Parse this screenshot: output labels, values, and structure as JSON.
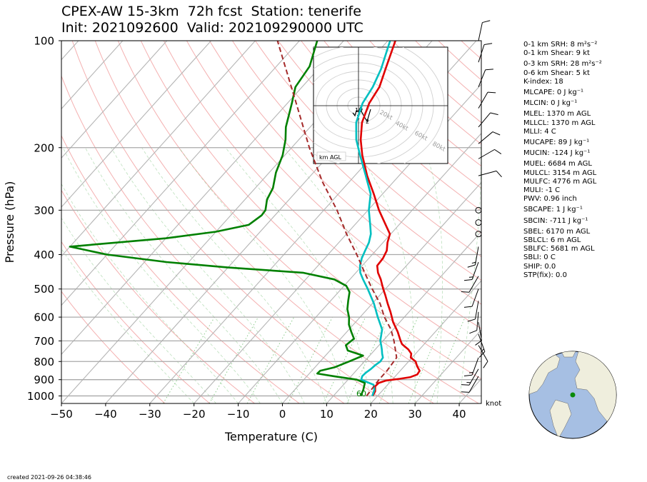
{
  "title_line1": "CPEX-AW 15-3km  72h fcst  Station: tenerife",
  "title_line2": "Init: 2021092600  Valid: 202109290000 UTC",
  "chart_data": {
    "type": "skew-t",
    "xlabel": "Temperature (C)",
    "ylabel": "Pressure (hPa)",
    "xlim": [
      -50,
      45
    ],
    "ylim_hpa": [
      1050,
      100
    ],
    "x_ticks": [
      -50,
      -40,
      -30,
      -20,
      -10,
      0,
      10,
      20,
      30,
      40
    ],
    "y_ticks": [
      1000,
      900,
      800,
      700,
      600,
      500,
      400,
      300,
      200,
      100
    ],
    "skew": "isotherms slanted to the right with height",
    "grid": true,
    "series": [
      {
        "name": "",
        "color": "#e00000",
        "points": [
          [
            1000,
            18.9
          ],
          [
            970,
            18.5
          ],
          [
            940,
            17.5
          ],
          [
            920,
            17.6
          ],
          [
            905,
            18.8
          ],
          [
            895,
            21.5
          ],
          [
            885,
            23.6
          ],
          [
            870,
            24.6
          ],
          [
            850,
            24.4
          ],
          [
            825,
            22.9
          ],
          [
            800,
            21.6
          ],
          [
            780,
            19.7
          ],
          [
            760,
            19.0
          ],
          [
            740,
            17.5
          ],
          [
            715,
            15.0
          ],
          [
            700,
            14.0
          ],
          [
            660,
            11.5
          ],
          [
            620,
            8.5
          ],
          [
            580,
            5.8
          ],
          [
            550,
            3.5
          ],
          [
            520,
            1.2
          ],
          [
            500,
            -0.5
          ],
          [
            470,
            -3.0
          ],
          [
            450,
            -5.0
          ],
          [
            430,
            -6.6
          ],
          [
            410,
            -6.8
          ],
          [
            390,
            -7.5
          ],
          [
            370,
            -9.0
          ],
          [
            350,
            -10.2
          ],
          [
            330,
            -13.0
          ],
          [
            300,
            -17.5
          ],
          [
            270,
            -22.0
          ],
          [
            240,
            -27.2
          ],
          [
            210,
            -32.5
          ],
          [
            190,
            -36.0
          ],
          [
            170,
            -39.2
          ],
          [
            150,
            -41.5
          ],
          [
            135,
            -42.5
          ],
          [
            120,
            -44.8
          ],
          [
            100,
            -48.3
          ]
        ]
      },
      {
        "name": "",
        "color": "#00bfc0",
        "points": [
          [
            1000,
            18.8
          ],
          [
            960,
            18.0
          ],
          [
            930,
            16.8
          ],
          [
            900,
            13.0
          ],
          [
            880,
            12.5
          ],
          [
            860,
            12.6
          ],
          [
            840,
            13.0
          ],
          [
            820,
            13.2
          ],
          [
            800,
            13.6
          ],
          [
            780,
            13.4
          ],
          [
            760,
            12.4
          ],
          [
            740,
            11.5
          ],
          [
            720,
            10.5
          ],
          [
            700,
            9.4
          ],
          [
            650,
            7.5
          ],
          [
            600,
            4.0
          ],
          [
            550,
            0.4
          ],
          [
            500,
            -4.0
          ],
          [
            470,
            -7.0
          ],
          [
            450,
            -9.0
          ],
          [
            430,
            -10.5
          ],
          [
            410,
            -11.6
          ],
          [
            390,
            -12.4
          ],
          [
            370,
            -13.2
          ],
          [
            350,
            -14.5
          ],
          [
            330,
            -16.5
          ],
          [
            300,
            -19.8
          ],
          [
            270,
            -22.7
          ],
          [
            240,
            -27.5
          ],
          [
            210,
            -33.0
          ],
          [
            190,
            -37.0
          ],
          [
            170,
            -40.5
          ],
          [
            150,
            -43.0
          ],
          [
            135,
            -44.0
          ],
          [
            120,
            -45.8
          ],
          [
            100,
            -49.5
          ]
        ]
      },
      {
        "name": "",
        "color": "#008000",
        "points": [
          [
            1000,
            16.2
          ],
          [
            960,
            15.5
          ],
          [
            920,
            14.5
          ],
          [
            900,
            12.0
          ],
          [
            880,
            6.0
          ],
          [
            865,
            1.8
          ],
          [
            850,
            1.9
          ],
          [
            830,
            4.5
          ],
          [
            800,
            6.5
          ],
          [
            770,
            8.5
          ],
          [
            745,
            4.0
          ],
          [
            720,
            2.5
          ],
          [
            690,
            3.0
          ],
          [
            660,
            1.0
          ],
          [
            630,
            -1.0
          ],
          [
            600,
            -2.5
          ],
          [
            570,
            -4.5
          ],
          [
            540,
            -6.0
          ],
          [
            510,
            -7.5
          ],
          [
            490,
            -9.5
          ],
          [
            470,
            -13.5
          ],
          [
            450,
            -22.0
          ],
          [
            435,
            -40.0
          ],
          [
            420,
            -55.0
          ],
          [
            400,
            -70.0
          ],
          [
            380,
            -80.0
          ],
          [
            360,
            -60.0
          ],
          [
            345,
            -50.0
          ],
          [
            330,
            -44.0
          ],
          [
            310,
            -43.0
          ],
          [
            300,
            -43.2
          ],
          [
            280,
            -45.0
          ],
          [
            260,
            -46.0
          ],
          [
            235,
            -48.5
          ],
          [
            210,
            -50.5
          ],
          [
            190,
            -53.0
          ],
          [
            175,
            -55.5
          ],
          [
            150,
            -59.0
          ],
          [
            135,
            -61.5
          ],
          [
            118,
            -62.5
          ],
          [
            100,
            -66.0
          ]
        ]
      },
      {
        "name": "",
        "color": "#a52a2a",
        "dashed": true,
        "points": [
          [
            1000,
            17.5
          ],
          [
            900,
            17.0
          ],
          [
            850,
            17.0
          ],
          [
            780,
            16.5
          ],
          [
            700,
            12.5
          ],
          [
            650,
            9.5
          ],
          [
            600,
            5.5
          ],
          [
            550,
            1.8
          ],
          [
            500,
            -3.0
          ],
          [
            450,
            -8.0
          ],
          [
            400,
            -13.5
          ],
          [
            350,
            -20.0
          ],
          [
            300,
            -27.0
          ],
          [
            250,
            -36.0
          ],
          [
            200,
            -46.0
          ],
          [
            150,
            -58.0
          ],
          [
            100,
            -75.0
          ]
        ]
      }
    ],
    "ccl_label": "60",
    "wind_units": "knot",
    "hodograph": {
      "rings_kt": [
        "20kt",
        "40kt",
        "60kt",
        "80kt"
      ],
      "height_labels": [
        "10",
        "6",
        "1",
        "2"
      ],
      "corner_label": "km AGL"
    }
  },
  "indices": [
    "0-1 km SRH: 8 m²s⁻²",
    "0-1 km Shear: 9 kt",
    "0-3 km SRH: 28 m²s⁻²",
    "0-6 km Shear: 5 kt",
    "K-index: 18",
    "MLCAPE: 0 J kg⁻¹",
    "MLCIN: 0 J kg⁻¹",
    "MLEL: 1370 m AGL",
    "MLLCL: 1370 m AGL",
    "MLLI: 4 C",
    "MUCAPE: 89 J kg⁻¹",
    "MUCIN: -124 J kg⁻¹",
    "MUEL: 6684 m AGL",
    "MULCL: 3154 m AGL",
    "MULFC: 4776 m AGL",
    "MULI: -1 C",
    "PWV: 0.96 inch",
    "SBCAPE: 1 J kg⁻¹",
    "SBCIN: -711 J kg⁻¹",
    "SBEL: 6170 m AGL",
    "SBLCL: 6 m AGL",
    "SBLFC: 5681 m AGL",
    "SBLI: 0 C",
    "SHIP: 0.0",
    "STP(fix): 0.0"
  ],
  "created": "created 2021-09-26 04:38:46",
  "colors": {
    "ocean": "#a6bfe3",
    "land": "#efeedd",
    "station": "#0a8a0a"
  }
}
